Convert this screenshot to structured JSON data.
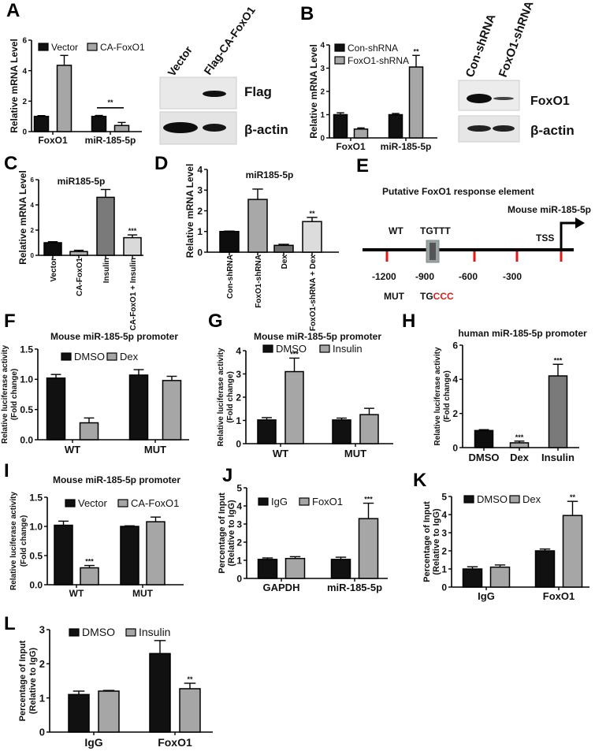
{
  "panel_letters": [
    "A",
    "B",
    "C",
    "D",
    "E",
    "F",
    "G",
    "H",
    "I",
    "J",
    "K",
    "L"
  ],
  "blots": {
    "A": {
      "lanes": [
        "Vector",
        "Flag-CA-FoxO1"
      ],
      "rows": [
        "Flag",
        "β-actin"
      ]
    },
    "B": {
      "lanes": [
        "Con-shRNA",
        "FoxO1-shRNA"
      ],
      "rows": [
        "FoxO1",
        "β-actin"
      ]
    }
  },
  "diagram_E": {
    "title": "Putative FoxO1 response element",
    "gene": "Mouse miR-185-5p",
    "wt_label": "WT",
    "wt_seq": "TGTTT",
    "tss": "TSS",
    "positions": [
      "-1200",
      "-900",
      "-600",
      "-300"
    ],
    "mut_label": "MUT",
    "mut_seq_kept": "TG",
    "mut_seq_changed": "CCC",
    "mut_color": "#d42020",
    "tick_color": "#e01818"
  },
  "chart_data": [
    {
      "panel": "A",
      "type": "bar",
      "title": "",
      "ylabel": [
        "Relative mRNA Level"
      ],
      "categories": [
        "FoxO1",
        "miR-185-5p"
      ],
      "ylim": [
        0,
        6
      ],
      "yticks": [
        "0",
        "2",
        "4",
        "6"
      ],
      "series": [
        {
          "name": "Vector",
          "color": "#111111",
          "values": [
            1.0,
            1.0
          ],
          "errors": [
            0.05,
            0.06
          ],
          "sig": [
            "",
            ""
          ]
        },
        {
          "name": "CA-FoxO1",
          "color": "#a6a6a6",
          "values": [
            4.35,
            0.4
          ],
          "errors": [
            0.65,
            0.2
          ],
          "sig": [
            "",
            ""
          ]
        }
      ],
      "bracket": {
        "category": 1,
        "text": "**"
      },
      "legend": "top"
    },
    {
      "panel": "B",
      "type": "bar",
      "title": "",
      "ylabel": [
        "Relative mRNA Level"
      ],
      "categories": [
        "FoxO1",
        "miR-185-5p"
      ],
      "ylim": [
        0,
        4
      ],
      "yticks": [
        "0",
        "1",
        "2",
        "3",
        "4"
      ],
      "series": [
        {
          "name": "Con-shRNA",
          "color": "#111111",
          "values": [
            1.0,
            1.0
          ],
          "errors": [
            0.08,
            0.05
          ],
          "sig": [
            "",
            ""
          ]
        },
        {
          "name": "FoxO1-shRNA",
          "color": "#a6a6a6",
          "values": [
            0.38,
            3.05
          ],
          "errors": [
            0.05,
            0.5
          ],
          "sig": [
            "",
            "**"
          ]
        }
      ],
      "legend": "top-left"
    },
    {
      "panel": "C",
      "type": "bar",
      "title": "miR185-5p",
      "ylabel": [
        "Relative mRNA Level"
      ],
      "categories": [
        "Vector",
        "CA-FoxO1",
        "Insulin",
        "CA-FoxO1 + Insulin"
      ],
      "ylim": [
        0,
        6
      ],
      "yticks": [
        "0",
        "2",
        "4",
        "6"
      ],
      "series": [
        {
          "name": "",
          "colors": [
            "#0d0d0d",
            "#b0b0b0",
            "#7a7a7a",
            "#d9d9d9"
          ],
          "values": [
            1.0,
            0.3,
            4.6,
            1.4
          ],
          "errors": [
            0.08,
            0.1,
            0.62,
            0.22
          ],
          "sig": [
            "",
            "",
            "",
            "***"
          ]
        }
      ]
    },
    {
      "panel": "D",
      "type": "bar",
      "title": "miR185-5p",
      "ylabel": [
        "Relative mRNA Level"
      ],
      "categories": [
        "Con-shRNA",
        "FoxO1-shRNA",
        "Dex",
        "FoxO1-shRNA + Dex"
      ],
      "ylim": [
        0,
        4
      ],
      "yticks": [
        "0",
        "1",
        "2",
        "3",
        "4"
      ],
      "series": [
        {
          "name": "",
          "colors": [
            "#0d0d0d",
            "#a8a8a8",
            "#6e6e6e",
            "#dcdcdc"
          ],
          "values": [
            1.0,
            2.55,
            0.33,
            1.48
          ],
          "errors": [
            0.02,
            0.5,
            0.05,
            0.2
          ],
          "sig": [
            "",
            "",
            "",
            "**"
          ]
        }
      ]
    },
    {
      "panel": "F",
      "type": "bar",
      "title": "Mouse miR-185-5p promoter",
      "ylabel": [
        "Relative luciferase activity",
        "(Fold change)"
      ],
      "categories": [
        "WT",
        "MUT"
      ],
      "ylim": [
        0,
        1.5
      ],
      "yticks": [
        "0.0",
        "0.5",
        "1.0",
        "1.5"
      ],
      "series": [
        {
          "name": "DMSO",
          "color": "#111111",
          "values": [
            1.02,
            1.07
          ],
          "errors": [
            0.06,
            0.09
          ],
          "sig": [
            "",
            ""
          ]
        },
        {
          "name": "Dex",
          "color": "#a6a6a6",
          "values": [
            0.28,
            0.98
          ],
          "errors": [
            0.08,
            0.07
          ],
          "sig": [
            "",
            ""
          ]
        }
      ],
      "legend": "top"
    },
    {
      "panel": "G",
      "type": "bar",
      "title": "Mouse miR-185-5p promoter",
      "ylabel": [
        "Relative luciferase activity",
        "(Fold change)"
      ],
      "categories": [
        "WT",
        "MUT"
      ],
      "ylim": [
        0,
        4
      ],
      "yticks": [
        "0",
        "1",
        "2",
        "3",
        "4"
      ],
      "series": [
        {
          "name": "DMSO",
          "color": "#111111",
          "values": [
            1.02,
            1.02
          ],
          "errors": [
            0.1,
            0.08
          ],
          "sig": [
            "",
            ""
          ]
        },
        {
          "name": "Insulin",
          "color": "#a6a6a6",
          "values": [
            3.1,
            1.25
          ],
          "errors": [
            0.58,
            0.27
          ],
          "sig": [
            "***",
            ""
          ]
        }
      ],
      "legend": "top"
    },
    {
      "panel": "H",
      "type": "bar",
      "title": "human miR-185-5p promoter",
      "ylabel": [
        "Relative luciferase activity",
        "(Fold change)"
      ],
      "categories": [
        "DMSO",
        "Dex",
        "Insulin"
      ],
      "ylim": [
        0,
        6
      ],
      "yticks": [
        "0",
        "2",
        "4",
        "6"
      ],
      "series": [
        {
          "name": "",
          "colors": [
            "#0d0d0d",
            "#a8a8a8",
            "#7a7a7a"
          ],
          "values": [
            1.0,
            0.28,
            4.2
          ],
          "errors": [
            0.05,
            0.1,
            0.68
          ],
          "sig": [
            "",
            "***",
            "***"
          ]
        }
      ]
    },
    {
      "panel": "I",
      "type": "bar",
      "title": "Mouse miR-185-5p promoter",
      "ylabel": [
        "Relative luciferase activity",
        "(Fold change)"
      ],
      "categories": [
        "WT",
        "MUT"
      ],
      "ylim": [
        0,
        1.5
      ],
      "yticks": [
        "0.0",
        "0.5",
        "1.0",
        "1.5"
      ],
      "series": [
        {
          "name": "Vector",
          "color": "#111111",
          "values": [
            1.02,
            1.0
          ],
          "errors": [
            0.07,
            0.01
          ],
          "sig": [
            "",
            ""
          ]
        },
        {
          "name": "CA-FoxO1",
          "color": "#a6a6a6",
          "values": [
            0.29,
            1.08
          ],
          "errors": [
            0.04,
            0.08
          ],
          "sig": [
            "***",
            ""
          ]
        }
      ],
      "legend": "top"
    },
    {
      "panel": "J",
      "type": "bar",
      "title": "",
      "ylabel": [
        "Percentage of Input",
        "(Relative to IgG)"
      ],
      "categories": [
        "GAPDH",
        "miR-185-5p"
      ],
      "ylim": [
        0,
        5
      ],
      "yticks": [
        "0",
        "1",
        "2",
        "3",
        "4",
        "5"
      ],
      "series": [
        {
          "name": "IgG",
          "color": "#111111",
          "values": [
            1.05,
            1.05
          ],
          "errors": [
            0.08,
            0.12
          ],
          "sig": [
            "",
            ""
          ]
        },
        {
          "name": "FoxO1",
          "color": "#a6a6a6",
          "values": [
            1.1,
            3.3
          ],
          "errors": [
            0.1,
            0.85
          ],
          "sig": [
            "",
            "***"
          ]
        }
      ],
      "legend": "top"
    },
    {
      "panel": "K",
      "type": "bar",
      "title": "",
      "ylabel": [
        "Percentage of Input",
        "(Relative to IgG)"
      ],
      "categories": [
        "IgG",
        "FoxO1"
      ],
      "ylim": [
        0,
        5
      ],
      "yticks": [
        "0",
        "1",
        "2",
        "3",
        "4",
        "5"
      ],
      "series": [
        {
          "name": "DMSO",
          "color": "#111111",
          "values": [
            1.0,
            2.0
          ],
          "errors": [
            0.12,
            0.1
          ],
          "sig": [
            "",
            ""
          ]
        },
        {
          "name": "Dex",
          "color": "#a6a6a6",
          "values": [
            1.1,
            3.95
          ],
          "errors": [
            0.12,
            0.78
          ],
          "sig": [
            "",
            "**"
          ]
        }
      ],
      "legend": "top"
    },
    {
      "panel": "L",
      "type": "bar",
      "title": "",
      "ylabel": [
        "Percentage of Input",
        "(Relative to IgG)"
      ],
      "categories": [
        "IgG",
        "FoxO1"
      ],
      "ylim": [
        0,
        3
      ],
      "yticks": [
        "0",
        "1",
        "2",
        "3"
      ],
      "series": [
        {
          "name": "DMSO",
          "color": "#111111",
          "values": [
            1.1,
            2.3
          ],
          "errors": [
            0.1,
            0.38
          ],
          "sig": [
            "",
            ""
          ]
        },
        {
          "name": "Insulin",
          "color": "#a6a6a6",
          "values": [
            1.2,
            1.27
          ],
          "errors": [
            0.02,
            0.16
          ],
          "sig": [
            "",
            "**"
          ]
        }
      ],
      "legend": "top"
    }
  ]
}
